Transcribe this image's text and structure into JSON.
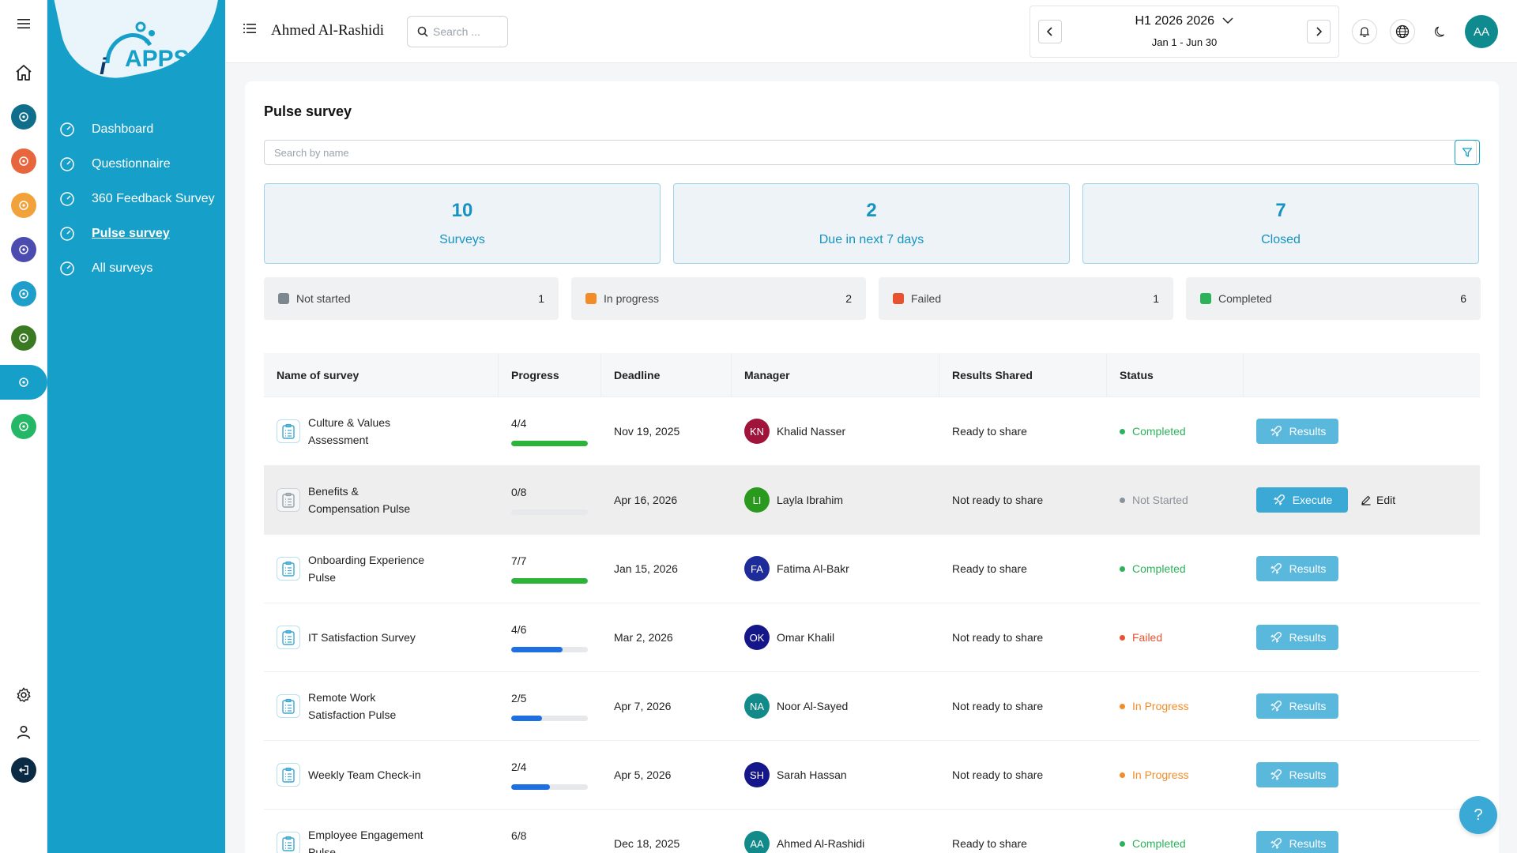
{
  "header": {
    "user_name": "Ahmed Al-Rashidi",
    "search_placeholder": "Search ...",
    "period_title": "H1 2026 2026",
    "period_range": "Jan 1 - Jun 30",
    "avatar_initials": "AA"
  },
  "brand": {
    "logo_text": "APPS",
    "logo_prefix": "i"
  },
  "sidebar": {
    "items": [
      {
        "label": "Dashboard",
        "icon": "dashboard-gauge-icon"
      },
      {
        "label": "Questionnaire",
        "icon": "chat-bubbles-icon"
      },
      {
        "label": "360 Feedback Survey",
        "icon": "feedback-360-icon"
      },
      {
        "label": "Pulse survey",
        "icon": "pulse-survey-icon",
        "active": true
      },
      {
        "label": "All surveys",
        "icon": "survey-board-icon"
      }
    ]
  },
  "rail": {
    "colors": [
      "#0f6e8c",
      "#e8663d",
      "#f2a23a",
      "#4c4cb0",
      "#1e9fc9",
      "#3a7a22",
      "#16a0c9",
      "#24b866"
    ]
  },
  "page": {
    "title": "Pulse survey",
    "search_placeholder": "Search by name"
  },
  "stats": [
    {
      "value": "10",
      "label": "Surveys"
    },
    {
      "value": "2",
      "label": "Due in next 7 days"
    },
    {
      "value": "7",
      "label": "Closed"
    }
  ],
  "status_summary": [
    {
      "label": "Not started",
      "count": "1",
      "color": "#7d8790"
    },
    {
      "label": "In progress",
      "count": "2",
      "color": "#f28c28"
    },
    {
      "label": "Failed",
      "count": "1",
      "color": "#e8532f"
    },
    {
      "label": "Completed",
      "count": "6",
      "color": "#2cb35a"
    }
  ],
  "table": {
    "headers": [
      "Name of survey",
      "Progress",
      "Deadline",
      "Manager",
      "Results Shared",
      "Status",
      ""
    ],
    "rows": [
      {
        "name": "Culture & Values Assessment",
        "progress": "4/4",
        "progress_fraction": 1.0,
        "bar_color": "#2cb33a",
        "deadline": "Nov 19, 2025",
        "manager_initials": "KN",
        "manager": "Khalid Nasser",
        "manager_color": "#a0143c",
        "results_shared": "Ready to share",
        "status": "Completed",
        "status_color": "#2cb35a",
        "action": "Results"
      },
      {
        "name": "Benefits & Compensation Pulse",
        "progress": "0/8",
        "progress_fraction": 0.0,
        "bar_color": "#1e6fe0",
        "deadline": "Apr 16, 2026",
        "manager_initials": "LI",
        "manager": "Layla Ibrahim",
        "manager_color": "#2a9a1e",
        "results_shared": "Not ready to share",
        "status": "Not Started",
        "status_color": "#8a9299",
        "action": "Execute",
        "secondary_action": "Edit"
      },
      {
        "name": "Onboarding Experience Pulse",
        "progress": "7/7",
        "progress_fraction": 1.0,
        "bar_color": "#2cb33a",
        "deadline": "Jan 15, 2026",
        "manager_initials": "FA",
        "manager": "Fatima Al-Bakr",
        "manager_color": "#1e2c9a",
        "results_shared": "Ready to share",
        "status": "Completed",
        "status_color": "#2cb35a",
        "action": "Results"
      },
      {
        "name": "IT Satisfaction Survey",
        "progress": "4/6",
        "progress_fraction": 0.667,
        "bar_color": "#1e6fe0",
        "deadline": "Mar 2, 2026",
        "manager_initials": "OK",
        "manager": "Omar Khalil",
        "manager_color": "#14168a",
        "results_shared": "Not ready to share",
        "status": "Failed",
        "status_color": "#e8532f",
        "action": "Results"
      },
      {
        "name": "Remote Work Satisfaction Pulse",
        "progress": "2/5",
        "progress_fraction": 0.4,
        "bar_color": "#1e6fe0",
        "deadline": "Apr 7, 2026",
        "manager_initials": "NA",
        "manager": "Noor Al-Sayed",
        "manager_color": "#128a8a",
        "results_shared": "Not ready to share",
        "status": "In Progress",
        "status_color": "#f28c28",
        "action": "Results"
      },
      {
        "name": "Weekly Team Check-in",
        "progress": "2/4",
        "progress_fraction": 0.5,
        "bar_color": "#1e6fe0",
        "deadline": "Apr 5, 2026",
        "manager_initials": "SH",
        "manager": "Sarah Hassan",
        "manager_color": "#14168a",
        "results_shared": "Not ready to share",
        "status": "In Progress",
        "status_color": "#f28c28",
        "action": "Results"
      },
      {
        "name": "Employee Engagement Pulse —",
        "progress": "6/8",
        "progress_fraction": 0.75,
        "bar_color": "#1e6fe0",
        "deadline": "Dec 18, 2025",
        "manager_initials": "AA",
        "manager": "Ahmed Al-Rashidi",
        "manager_color": "#128a8a",
        "results_shared": "Ready to share",
        "status": "Completed",
        "status_color": "#2cb35a",
        "action": "Results"
      }
    ]
  },
  "help": {
    "label": "?"
  }
}
